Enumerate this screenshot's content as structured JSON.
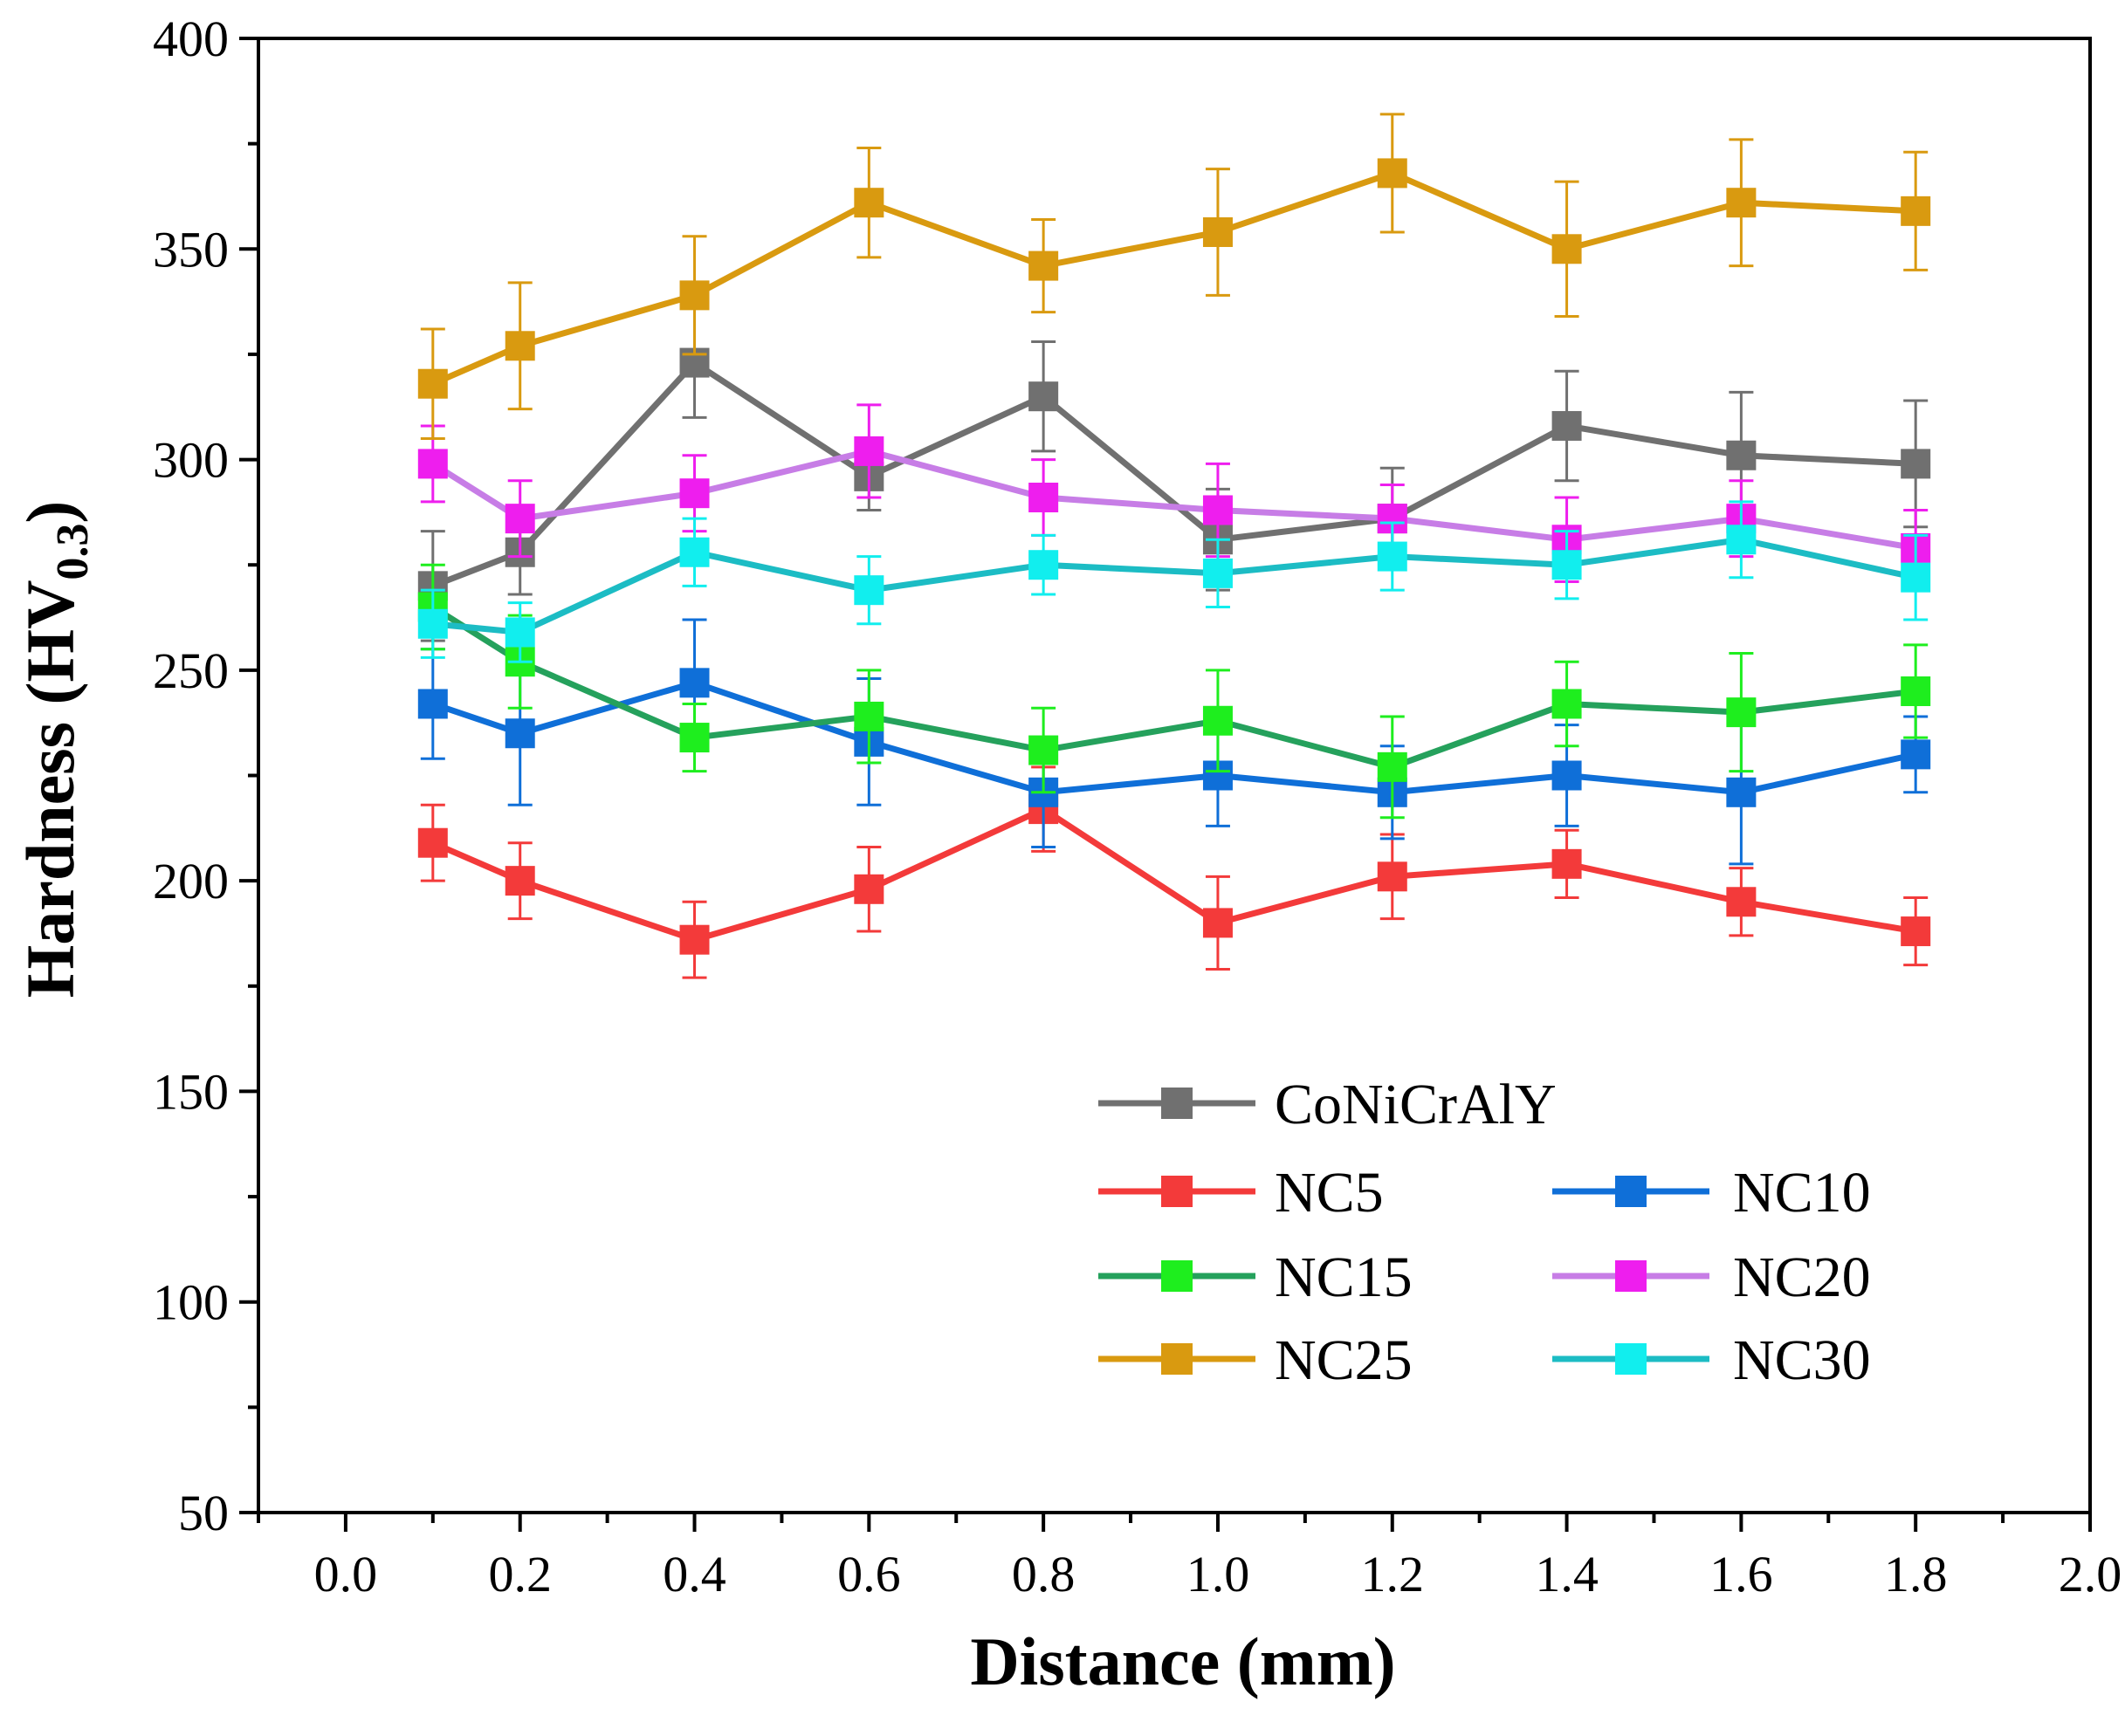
{
  "chart_data": {
    "type": "line",
    "title": "",
    "xlabel": "Distance (mm)",
    "ylabel_main": "Hardness (HV",
    "ylabel_sub": "0.3",
    "ylabel_close": ")",
    "xlim": [
      -0.1,
      2.0
    ],
    "ylim": [
      50,
      400
    ],
    "xticks": [
      0.0,
      0.2,
      0.4,
      0.6,
      0.8,
      1.0,
      1.2,
      1.4,
      1.6,
      1.8,
      2.0
    ],
    "xtick_labels": [
      "0.0",
      "0.2",
      "0.4",
      "0.6",
      "0.8",
      "1.0",
      "1.2",
      "1.4",
      "1.6",
      "1.8",
      "2.0"
    ],
    "yticks": [
      50,
      100,
      150,
      200,
      250,
      300,
      350,
      400
    ],
    "ytick_labels": [
      "50",
      "100",
      "150",
      "200",
      "250",
      "300",
      "350",
      "400"
    ],
    "grid": false,
    "legend_position": "lower-right",
    "x": [
      0.1,
      0.2,
      0.4,
      0.6,
      0.8,
      1.0,
      1.2,
      1.4,
      1.6,
      1.8
    ],
    "series": [
      {
        "name": "CoNiCrAlY",
        "color": "#707070",
        "values": [
          270,
          278,
          323,
          296,
          315,
          281,
          286,
          308,
          301,
          299
        ],
        "errors": [
          13,
          10,
          13,
          8,
          13,
          12,
          12,
          13,
          15,
          15
        ]
      },
      {
        "name": "NC5",
        "color": "#f33a3a",
        "values": [
          209,
          200,
          186,
          198,
          217,
          190,
          201,
          204,
          195,
          188
        ],
        "errors": [
          9,
          9,
          9,
          10,
          10,
          11,
          10,
          8,
          8,
          8
        ]
      },
      {
        "name": "NC10",
        "color": "#0f6fd8",
        "values": [
          242,
          235,
          247,
          233,
          221,
          225,
          221,
          225,
          221,
          230
        ],
        "errors": [
          13,
          17,
          15,
          15,
          13,
          12,
          11,
          12,
          17,
          9
        ]
      },
      {
        "name": "NC15",
        "color": "#25a15c",
        "values": [
          265,
          252,
          234,
          239,
          231,
          238,
          227,
          242,
          240,
          245
        ],
        "errors": [
          10,
          11,
          8,
          11,
          10,
          12,
          12,
          10,
          14,
          11
        ]
      },
      {
        "name": "NC20",
        "color": "#c77de6",
        "values": [
          299,
          286,
          292,
          302,
          291,
          288,
          286,
          281,
          286,
          279
        ],
        "errors": [
          9,
          9,
          9,
          11,
          9,
          11,
          8,
          10,
          9,
          9
        ]
      },
      {
        "name": "NC25",
        "color": "#d99a10",
        "values": [
          318,
          327,
          339,
          361,
          346,
          354,
          368,
          350,
          361,
          359
        ],
        "errors": [
          13,
          15,
          14,
          13,
          11,
          15,
          14,
          16,
          15,
          14
        ]
      },
      {
        "name": "NC30",
        "color": "#1cbcc4",
        "values": [
          261,
          259,
          278,
          269,
          275,
          273,
          277,
          275,
          281,
          272
        ],
        "errors": [
          8,
          7,
          8,
          8,
          7,
          8,
          8,
          8,
          9,
          10
        ]
      }
    ],
    "marker_colors": {
      "CoNiCrAlY": "#707070",
      "NC5": "#f33a3a",
      "NC10": "#0f6fd8",
      "NC15": "#1eee1e",
      "NC20": "#ee1eee",
      "NC25": "#d99a10",
      "NC30": "#11eeee"
    },
    "legend": [
      {
        "name": "CoNiCrAlY"
      },
      {
        "name": "NC5"
      },
      {
        "name": "NC10"
      },
      {
        "name": "NC15"
      },
      {
        "name": "NC20"
      },
      {
        "name": "NC25"
      },
      {
        "name": "NC30"
      }
    ]
  }
}
